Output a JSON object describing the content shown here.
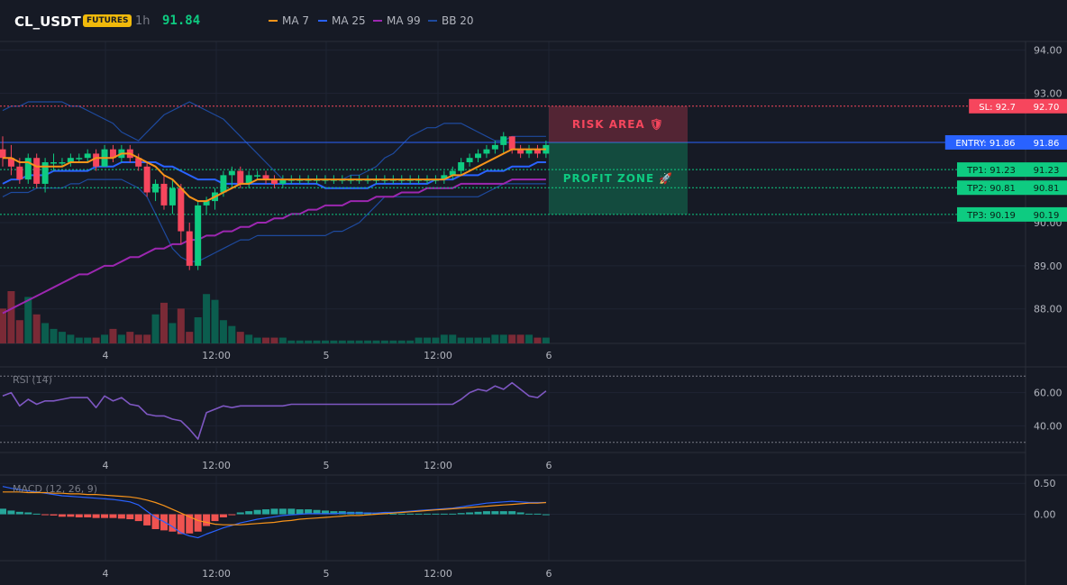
{
  "header": {
    "symbol": "CL_USDT",
    "badge": "FUTURES",
    "timeframe": "1h",
    "last_price": "91.84",
    "indicators": [
      {
        "label": "MA 7",
        "color": "#f7931a"
      },
      {
        "label": "MA 25",
        "color": "#2962ff"
      },
      {
        "label": "MA 99",
        "color": "#9c27b0"
      },
      {
        "label": "BB 20",
        "color": "#1e4a9e"
      }
    ]
  },
  "colors": {
    "up": "#0ecb81",
    "down": "#f6465d",
    "ma7": "#f7931a",
    "ma25": "#2962ff",
    "ma99": "#9c27b0",
    "bb": "#1e4a9e",
    "rsi": "#7e57c2",
    "macd_line": "#2962ff",
    "signal_line": "#f7931a",
    "hist_up": "#26a69a",
    "hist_down": "#ef5350"
  },
  "time_axis": {
    "labels": [
      "4",
      "12:00",
      "5",
      "12:00",
      "6"
    ]
  },
  "chart_data": [
    {
      "type": "candlestick",
      "price_axis": {
        "ticks": [
          "94.00",
          "93.00",
          "90.00",
          "89.00",
          "88.00"
        ],
        "ylim": [
          87.2,
          94.2
        ]
      },
      "candles": [
        [
          91.7,
          92.0,
          91.3,
          91.5
        ],
        [
          91.5,
          91.8,
          91.1,
          91.3
        ],
        [
          91.3,
          91.5,
          90.9,
          91.0
        ],
        [
          91.0,
          91.6,
          90.9,
          91.5
        ],
        [
          91.5,
          91.6,
          90.8,
          90.9
        ],
        [
          90.9,
          91.5,
          90.7,
          91.4
        ],
        [
          91.4,
          91.6,
          91.2,
          91.4
        ],
        [
          91.4,
          91.5,
          91.3,
          91.4
        ],
        [
          91.4,
          91.6,
          91.3,
          91.5
        ],
        [
          91.5,
          91.6,
          91.4,
          91.5
        ],
        [
          91.5,
          91.7,
          91.4,
          91.6
        ],
        [
          91.6,
          91.7,
          91.2,
          91.3
        ],
        [
          91.3,
          91.8,
          91.3,
          91.7
        ],
        [
          91.7,
          91.8,
          91.4,
          91.5
        ],
        [
          91.5,
          91.8,
          91.4,
          91.7
        ],
        [
          91.7,
          91.8,
          91.4,
          91.5
        ],
        [
          91.5,
          91.6,
          91.2,
          91.3
        ],
        [
          91.3,
          91.4,
          90.6,
          90.7
        ],
        [
          90.7,
          91.0,
          90.5,
          90.9
        ],
        [
          90.9,
          91.1,
          90.3,
          90.4
        ],
        [
          90.4,
          91.0,
          90.2,
          90.8
        ],
        [
          90.8,
          90.9,
          89.5,
          89.8
        ],
        [
          89.8,
          90.0,
          88.9,
          89.0
        ],
        [
          89.0,
          90.5,
          88.9,
          90.4
        ],
        [
          90.4,
          90.6,
          90.2,
          90.5
        ],
        [
          90.5,
          90.8,
          90.3,
          90.7
        ],
        [
          90.7,
          91.2,
          90.6,
          91.1
        ],
        [
          91.1,
          91.3,
          90.8,
          91.2
        ],
        [
          91.2,
          91.3,
          90.8,
          90.9
        ],
        [
          90.9,
          91.2,
          90.8,
          91.1
        ],
        [
          91.1,
          91.2,
          91.0,
          91.1
        ],
        [
          91.1,
          91.2,
          90.9,
          91.0
        ],
        [
          91.0,
          91.1,
          90.8,
          90.9
        ],
        [
          90.9,
          91.1,
          90.8,
          91.0
        ],
        [
          91.0,
          91.1,
          90.9,
          91.0
        ],
        [
          91.0,
          91.1,
          90.9,
          91.0
        ],
        [
          91.0,
          91.1,
          90.9,
          91.0
        ],
        [
          91.0,
          91.1,
          90.9,
          91.0
        ],
        [
          91.0,
          91.1,
          90.9,
          91.0
        ],
        [
          91.0,
          91.1,
          90.9,
          91.0
        ],
        [
          91.0,
          91.1,
          90.9,
          91.0
        ],
        [
          91.0,
          91.1,
          90.9,
          91.0
        ],
        [
          91.0,
          91.1,
          90.9,
          91.0
        ],
        [
          91.0,
          91.1,
          90.9,
          91.0
        ],
        [
          91.0,
          91.1,
          90.9,
          91.0
        ],
        [
          91.0,
          91.1,
          90.9,
          91.0
        ],
        [
          91.0,
          91.1,
          90.9,
          91.0
        ],
        [
          91.0,
          91.1,
          90.9,
          91.0
        ],
        [
          91.0,
          91.1,
          90.9,
          91.0
        ],
        [
          91.0,
          91.1,
          90.9,
          91.0
        ],
        [
          91.0,
          91.1,
          90.9,
          91.0
        ],
        [
          91.0,
          91.1,
          90.9,
          91.0
        ],
        [
          91.0,
          91.2,
          90.9,
          91.1
        ],
        [
          91.1,
          91.3,
          91.0,
          91.2
        ],
        [
          91.2,
          91.5,
          91.1,
          91.4
        ],
        [
          91.4,
          91.6,
          91.3,
          91.5
        ],
        [
          91.5,
          91.7,
          91.4,
          91.6
        ],
        [
          91.6,
          91.8,
          91.5,
          91.7
        ],
        [
          91.7,
          91.9,
          91.6,
          91.8
        ],
        [
          91.8,
          92.1,
          91.6,
          92.0
        ],
        [
          92.0,
          92.0,
          91.6,
          91.7
        ],
        [
          91.7,
          91.8,
          91.5,
          91.6
        ],
        [
          91.6,
          91.8,
          91.5,
          91.7
        ],
        [
          91.7,
          91.8,
          91.5,
          91.6
        ],
        [
          91.6,
          91.9,
          91.5,
          91.8
        ]
      ],
      "ma7": [
        91.5,
        91.5,
        91.4,
        91.4,
        91.3,
        91.3,
        91.3,
        91.3,
        91.4,
        91.4,
        91.4,
        91.5,
        91.5,
        91.5,
        91.6,
        91.6,
        91.5,
        91.4,
        91.3,
        91.1,
        91.0,
        90.8,
        90.6,
        90.5,
        90.5,
        90.6,
        90.7,
        90.8,
        90.9,
        90.9,
        91.0,
        91.0,
        91.0,
        91.0,
        91.0,
        91.0,
        91.0,
        91.0,
        91.0,
        91.0,
        91.0,
        91.0,
        91.0,
        91.0,
        91.0,
        91.0,
        91.0,
        91.0,
        91.0,
        91.0,
        91.0,
        91.0,
        91.0,
        91.1,
        91.1,
        91.2,
        91.3,
        91.4,
        91.5,
        91.6,
        91.7,
        91.7,
        91.7,
        91.7,
        91.7
      ],
      "ma25": [
        90.9,
        91.0,
        91.0,
        91.1,
        91.1,
        91.1,
        91.2,
        91.2,
        91.2,
        91.2,
        91.2,
        91.3,
        91.3,
        91.3,
        91.4,
        91.4,
        91.4,
        91.4,
        91.4,
        91.3,
        91.3,
        91.2,
        91.1,
        91.0,
        91.0,
        91.0,
        90.9,
        90.9,
        90.9,
        90.9,
        90.9,
        90.9,
        90.9,
        90.9,
        90.9,
        90.9,
        90.9,
        90.9,
        90.8,
        90.8,
        90.8,
        90.8,
        90.8,
        90.8,
        90.9,
        90.9,
        90.9,
        90.9,
        90.9,
        90.9,
        90.9,
        91.0,
        91.0,
        91.0,
        91.1,
        91.1,
        91.1,
        91.2,
        91.2,
        91.2,
        91.3,
        91.3,
        91.3,
        91.4,
        91.4
      ],
      "ma99": [
        87.9,
        88.0,
        88.1,
        88.2,
        88.3,
        88.4,
        88.5,
        88.6,
        88.7,
        88.8,
        88.8,
        88.9,
        89.0,
        89.0,
        89.1,
        89.2,
        89.2,
        89.3,
        89.4,
        89.4,
        89.5,
        89.5,
        89.6,
        89.6,
        89.7,
        89.7,
        89.8,
        89.8,
        89.9,
        89.9,
        90.0,
        90.0,
        90.1,
        90.1,
        90.2,
        90.2,
        90.3,
        90.3,
        90.4,
        90.4,
        90.4,
        90.5,
        90.5,
        90.5,
        90.6,
        90.6,
        90.6,
        90.7,
        90.7,
        90.7,
        90.8,
        90.8,
        90.8,
        90.8,
        90.9,
        90.9,
        90.9,
        90.9,
        90.9,
        90.9,
        91.0,
        91.0,
        91.0,
        91.0,
        91.0
      ],
      "bb_upper": [
        92.6,
        92.7,
        92.7,
        92.8,
        92.8,
        92.8,
        92.8,
        92.8,
        92.7,
        92.7,
        92.6,
        92.5,
        92.4,
        92.3,
        92.1,
        92.0,
        91.9,
        92.1,
        92.3,
        92.5,
        92.6,
        92.7,
        92.8,
        92.7,
        92.6,
        92.5,
        92.4,
        92.2,
        92.0,
        91.8,
        91.6,
        91.4,
        91.2,
        91.0,
        91.0,
        91.0,
        91.0,
        91.0,
        91.0,
        91.0,
        91.0,
        91.1,
        91.1,
        91.2,
        91.3,
        91.5,
        91.6,
        91.8,
        92.0,
        92.1,
        92.2,
        92.2,
        92.3,
        92.3,
        92.3,
        92.2,
        92.1,
        92.0,
        91.9,
        91.9,
        92.0,
        92.0,
        92.0,
        92.0,
        92.0
      ],
      "bb_lower": [
        90.6,
        90.7,
        90.7,
        90.7,
        90.8,
        90.8,
        90.8,
        90.8,
        90.9,
        90.9,
        91.0,
        91.0,
        91.0,
        91.0,
        91.0,
        90.9,
        90.8,
        90.6,
        90.2,
        89.8,
        89.4,
        89.2,
        89.1,
        89.1,
        89.2,
        89.3,
        89.4,
        89.5,
        89.6,
        89.6,
        89.7,
        89.7,
        89.7,
        89.7,
        89.7,
        89.7,
        89.7,
        89.7,
        89.7,
        89.8,
        89.8,
        89.9,
        90.0,
        90.2,
        90.4,
        90.6,
        90.6,
        90.6,
        90.6,
        90.6,
        90.6,
        90.6,
        90.6,
        90.6,
        90.6,
        90.6,
        90.6,
        90.7,
        90.8,
        90.9,
        90.9,
        90.9,
        90.9,
        90.9,
        90.9
      ],
      "volume": [
        12,
        18,
        8,
        16,
        10,
        7,
        5,
        4,
        3,
        2,
        2,
        2,
        3,
        5,
        3,
        4,
        3,
        3,
        10,
        14,
        7,
        12,
        4,
        9,
        17,
        15,
        8,
        6,
        4,
        3,
        2,
        2,
        2,
        2,
        1,
        1,
        1,
        1,
        1,
        1,
        1,
        1,
        1,
        1,
        1,
        1,
        1,
        1,
        1,
        2,
        2,
        2,
        3,
        3,
        2,
        2,
        2,
        2,
        3,
        3,
        3,
        3,
        3,
        2,
        2
      ],
      "levels": [
        {
          "label": "SL: 92.7",
          "value": "92.70",
          "price": 92.7,
          "color": "#f6465d"
        },
        {
          "label": "ENTRY: 91.86",
          "value": "91.86",
          "price": 91.86,
          "color": "#2962ff"
        },
        {
          "label": "TP1: 91.23",
          "value": "91.23",
          "price": 91.23,
          "color": "#0ecb81"
        },
        {
          "label": "TP2: 90.81",
          "value": "90.81",
          "price": 90.81,
          "color": "#0ecb81"
        },
        {
          "label": "TP3: 90.19",
          "value": "90.19",
          "price": 90.19,
          "color": "#0ecb81"
        }
      ],
      "zones": {
        "risk_label": "RISK AREA 🛡",
        "profit_label": "PROFIT ZONE 🚀"
      }
    },
    {
      "type": "line",
      "title": "RSI (14)",
      "ticks": [
        "60.00",
        "40.00"
      ],
      "ylim": [
        25,
        75
      ],
      "values": [
        58,
        60,
        52,
        56,
        53,
        55,
        55,
        56,
        57,
        57,
        57,
        51,
        58,
        55,
        57,
        53,
        52,
        47,
        46,
        46,
        44,
        43,
        38,
        32,
        48,
        50,
        52,
        51,
        52,
        52,
        52,
        52,
        52,
        52,
        53,
        53,
        53,
        53,
        53,
        53,
        53,
        53,
        53,
        53,
        53,
        53,
        53,
        53,
        53,
        53,
        53,
        53,
        53,
        53,
        56,
        60,
        62,
        61,
        64,
        62,
        66,
        62,
        58,
        57,
        61
      ]
    },
    {
      "type": "bar+line",
      "title": "MACD (12, 26, 9)",
      "ticks": [
        "0.50",
        "0.00"
      ],
      "ylim": [
        -0.75,
        0.62
      ],
      "macd": [
        0.45,
        0.42,
        0.4,
        0.38,
        0.36,
        0.34,
        0.32,
        0.3,
        0.29,
        0.28,
        0.27,
        0.26,
        0.25,
        0.24,
        0.22,
        0.2,
        0.15,
        0.05,
        -0.05,
        -0.12,
        -0.2,
        -0.3,
        -0.35,
        -0.38,
        -0.32,
        -0.27,
        -0.22,
        -0.18,
        -0.14,
        -0.11,
        -0.08,
        -0.06,
        -0.04,
        -0.02,
        -0.01,
        0.0,
        0.01,
        0.01,
        0.01,
        0.01,
        0.02,
        0.02,
        0.02,
        0.02,
        0.02,
        0.03,
        0.03,
        0.04,
        0.05,
        0.06,
        0.07,
        0.08,
        0.09,
        0.1,
        0.12,
        0.14,
        0.16,
        0.18,
        0.19,
        0.2,
        0.21,
        0.2,
        0.19,
        0.19,
        0.19
      ],
      "signal": [
        0.36,
        0.36,
        0.36,
        0.35,
        0.35,
        0.35,
        0.34,
        0.34,
        0.33,
        0.33,
        0.32,
        0.32,
        0.31,
        0.3,
        0.29,
        0.28,
        0.26,
        0.23,
        0.19,
        0.14,
        0.08,
        0.02,
        -0.04,
        -0.1,
        -0.13,
        -0.16,
        -0.17,
        -0.17,
        -0.17,
        -0.16,
        -0.15,
        -0.14,
        -0.13,
        -0.11,
        -0.1,
        -0.08,
        -0.07,
        -0.06,
        -0.05,
        -0.04,
        -0.03,
        -0.02,
        -0.02,
        -0.01,
        0.0,
        0.01,
        0.02,
        0.03,
        0.04,
        0.05,
        0.06,
        0.07,
        0.08,
        0.09,
        0.1,
        0.11,
        0.12,
        0.13,
        0.14,
        0.15,
        0.16,
        0.17,
        0.18,
        0.18,
        0.19
      ],
      "hist": [
        0.09,
        0.06,
        0.04,
        0.03,
        0.01,
        -0.01,
        -0.02,
        -0.04,
        -0.04,
        -0.05,
        -0.05,
        -0.06,
        -0.06,
        -0.06,
        -0.07,
        -0.08,
        -0.11,
        -0.18,
        -0.24,
        -0.26,
        -0.28,
        -0.32,
        -0.31,
        -0.28,
        -0.19,
        -0.11,
        -0.05,
        -0.01,
        0.03,
        0.05,
        0.07,
        0.08,
        0.09,
        0.09,
        0.09,
        0.08,
        0.08,
        0.07,
        0.06,
        0.05,
        0.05,
        0.04,
        0.04,
        0.03,
        0.02,
        0.02,
        0.01,
        0.01,
        0.01,
        0.01,
        0.01,
        0.01,
        0.01,
        0.01,
        0.02,
        0.03,
        0.04,
        0.05,
        0.05,
        0.05,
        0.05,
        0.03,
        0.01,
        0.01,
        0.0
      ]
    }
  ]
}
